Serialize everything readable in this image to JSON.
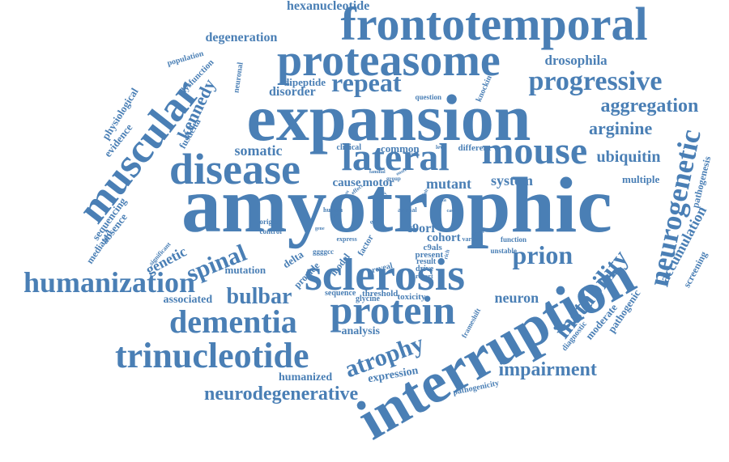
{
  "color": "#4a7fb5",
  "words": [
    {
      "text": "amyotrophic",
      "weight": 1.0
    },
    {
      "text": "expansion",
      "weight": 0.78
    },
    {
      "text": "interruption",
      "weight": 0.72
    },
    {
      "text": "frontotemporal",
      "weight": 0.65
    },
    {
      "text": "sclerosis",
      "weight": 0.62
    },
    {
      "text": "proteasome",
      "weight": 0.58
    },
    {
      "text": "disease",
      "weight": 0.58
    },
    {
      "text": "lateral",
      "weight": 0.55
    },
    {
      "text": "mouse",
      "weight": 0.55
    },
    {
      "text": "muscular",
      "weight": 0.52
    },
    {
      "text": "protein",
      "weight": 0.52
    },
    {
      "text": "trinucleotide",
      "weight": 0.5
    },
    {
      "text": "dementia",
      "weight": 0.46
    },
    {
      "text": "humanization",
      "weight": 0.44
    },
    {
      "text": "neurogenetic",
      "weight": 0.42
    },
    {
      "text": "progressive",
      "weight": 0.4
    },
    {
      "text": "repeat",
      "weight": 0.4
    },
    {
      "text": "instability",
      "weight": 0.38
    },
    {
      "text": "prion",
      "weight": 0.38
    },
    {
      "text": "atrophy",
      "weight": 0.37
    },
    {
      "text": "spinal",
      "weight": 0.36
    },
    {
      "text": "bulbar",
      "weight": 0.34
    },
    {
      "text": "impairment",
      "weight": 0.33
    },
    {
      "text": "neurodegenerative",
      "weight": 0.32
    },
    {
      "text": "aggregation",
      "weight": 0.31
    },
    {
      "text": "arginine",
      "weight": 0.3
    },
    {
      "text": "kennedy",
      "weight": 0.28
    },
    {
      "text": "ubiquitin",
      "weight": 0.27
    },
    {
      "text": "accumulation",
      "weight": 0.26
    },
    {
      "text": "genetic",
      "weight": 0.26
    },
    {
      "text": "somatic",
      "weight": 0.25
    },
    {
      "text": "mutant",
      "weight": 0.24
    },
    {
      "text": "system",
      "weight": 0.24
    },
    {
      "text": "neuron",
      "weight": 0.24
    },
    {
      "text": "drosophila",
      "weight": 0.23
    },
    {
      "text": "degeneration",
      "weight": 0.22
    },
    {
      "text": "hexanucleotide",
      "weight": 0.22
    },
    {
      "text": "disorder",
      "weight": 0.22
    },
    {
      "text": "humanized",
      "weight": 0.21
    },
    {
      "text": "expression",
      "weight": 0.21
    },
    {
      "text": "analysis",
      "weight": 0.2
    },
    {
      "text": "associated",
      "weight": 0.2
    },
    {
      "text": "physiological",
      "weight": 0.2
    },
    {
      "text": "sequencing",
      "weight": 0.2
    },
    {
      "text": "multiple",
      "weight": 0.2
    },
    {
      "text": "evidence",
      "weight": 0.19
    },
    {
      "text": "pathogenic",
      "weight": 0.19
    },
    {
      "text": "cause",
      "weight": 0.19
    },
    {
      "text": "motor",
      "weight": 0.19
    },
    {
      "text": "c9orf",
      "weight": 0.19
    },
    {
      "text": "cohort",
      "weight": 0.18
    },
    {
      "text": "fusdelta",
      "weight": 0.18
    },
    {
      "text": "common",
      "weight": 0.17
    },
    {
      "text": "dipeptide",
      "weight": 0.17
    },
    {
      "text": "mutation",
      "weight": 0.17
    },
    {
      "text": "absence",
      "weight": 0.17
    },
    {
      "text": "screening",
      "weight": 0.17
    },
    {
      "text": "moderate",
      "weight": 0.16
    },
    {
      "text": "delta",
      "weight": 0.16
    },
    {
      "text": "pathogenesis",
      "weight": 0.15
    },
    {
      "text": "mediated",
      "weight": 0.15
    },
    {
      "text": "different",
      "weight": 0.15
    },
    {
      "text": "toxicity",
      "weight": 0.15
    },
    {
      "text": "model",
      "weight": 0.14
    },
    {
      "text": "provide",
      "weight": 0.14
    },
    {
      "text": "dysfunction",
      "weight": 0.14
    },
    {
      "text": "population",
      "weight": 0.13
    },
    {
      "text": "diagnostic",
      "weight": 0.13
    },
    {
      "text": "pathogenicity",
      "weight": 0.13
    },
    {
      "text": "present",
      "weight": 0.13
    },
    {
      "text": "knockin",
      "weight": 0.12
    },
    {
      "text": "neuronal",
      "weight": 0.12
    },
    {
      "text": "threshold",
      "weight": 0.12
    },
    {
      "text": "sequence",
      "weight": 0.12
    },
    {
      "text": "c9als",
      "weight": 0.12
    },
    {
      "text": "glycine",
      "weight": 0.12
    },
    {
      "text": "reveal",
      "weight": 0.12
    },
    {
      "text": "clinical",
      "weight": 0.11
    },
    {
      "text": "factor",
      "weight": 0.11
    },
    {
      "text": "frameshift",
      "weight": 0.11
    },
    {
      "text": "result",
      "weight": 0.11
    },
    {
      "text": "drive",
      "weight": 0.1
    },
    {
      "text": "question",
      "weight": 0.1
    },
    {
      "text": "significant",
      "weight": 0.1
    },
    {
      "text": "ggggcc",
      "weight": 0.1
    },
    {
      "text": "function",
      "weight": 0.1
    },
    {
      "text": "unstable",
      "weight": 0.1
    },
    {
      "text": "origin",
      "weight": 0.1
    },
    {
      "text": "control",
      "weight": 0.09
    },
    {
      "text": "variant",
      "weight": 0.09
    },
    {
      "text": "express",
      "weight": 0.09
    },
    {
      "text": "report",
      "weight": 0.09
    },
    {
      "text": "animal",
      "weight": 0.09
    },
    {
      "text": "human",
      "weight": 0.08
    },
    {
      "text": "occur",
      "weight": 0.08
    },
    {
      "text": "level",
      "weight": 0.08
    },
    {
      "text": "study",
      "weight": 0.08
    },
    {
      "text": "rich",
      "weight": 0.08
    },
    {
      "text": "novel",
      "weight": 0.08
    },
    {
      "text": "group",
      "weight": 0.08
    },
    {
      "text": "effect",
      "weight": 0.08
    },
    {
      "text": "familial",
      "weight": 0.08
    },
    {
      "text": "loss",
      "weight": 0.07
    },
    {
      "text": "adult",
      "weight": 0.07
    },
    {
      "text": "case",
      "weight": 0.07
    },
    {
      "text": "show",
      "weight": 0.07
    },
    {
      "text": "gene",
      "weight": 0.07
    },
    {
      "text": "onset",
      "weight": 0.07
    },
    {
      "text": "data",
      "weight": 0.07
    },
    {
      "text": "age",
      "weight": 0.07
    },
    {
      "text": "mice",
      "weight": 0.07
    }
  ]
}
